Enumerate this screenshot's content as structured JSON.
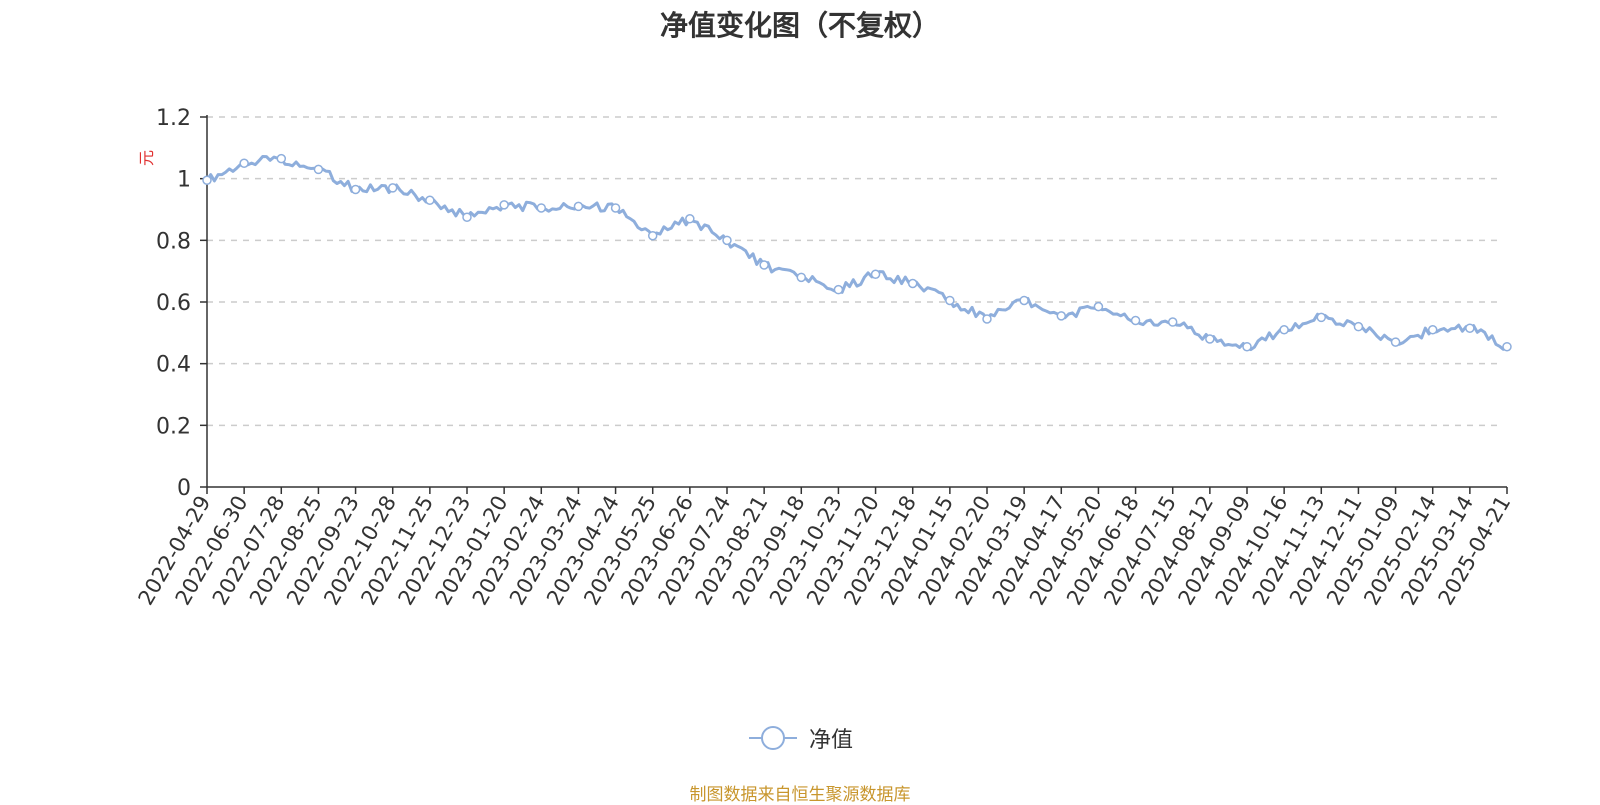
{
  "colors": {
    "line": "#8eaedc",
    "grid": "#cccccc",
    "axis": "#333333",
    "unit": "#e03030",
    "source": "#c8962d"
  },
  "footer": {
    "source": "制图数据来自恒生聚源数据库"
  },
  "chart_data": {
    "type": "line",
    "title": "净值变化图（不复权）",
    "ylabel": "元",
    "xlabel": "",
    "ylim": [
      0,
      1.2
    ],
    "yticks": [
      "0",
      "0.2",
      "0.4",
      "0.6",
      "0.8",
      "1",
      "1.2"
    ],
    "grid": true,
    "legend_position": "bottom-center",
    "categories": [
      "2022-04-29",
      "2022-06-30",
      "2022-07-28",
      "2022-08-25",
      "2022-09-23",
      "2022-10-28",
      "2022-11-25",
      "2022-12-23",
      "2023-01-20",
      "2023-02-24",
      "2023-03-24",
      "2023-04-24",
      "2023-05-25",
      "2023-06-26",
      "2023-07-24",
      "2023-08-21",
      "2023-09-18",
      "2023-10-23",
      "2023-11-20",
      "2023-12-18",
      "2024-01-15",
      "2024-02-20",
      "2024-03-19",
      "2024-04-17",
      "2024-05-20",
      "2024-06-18",
      "2024-07-15",
      "2024-08-12",
      "2024-09-09",
      "2024-10-16",
      "2024-11-13",
      "2024-12-11",
      "2025-01-09",
      "2025-02-14",
      "2025-03-14",
      "2025-04-21"
    ],
    "series": [
      {
        "name": "净值",
        "values": [
          0.995,
          1.05,
          1.065,
          1.03,
          0.965,
          0.97,
          0.93,
          0.875,
          0.915,
          0.905,
          0.91,
          0.905,
          0.815,
          0.87,
          0.8,
          0.72,
          0.68,
          0.64,
          0.69,
          0.66,
          0.605,
          0.545,
          0.605,
          0.555,
          0.585,
          0.54,
          0.535,
          0.48,
          0.455,
          0.51,
          0.55,
          0.52,
          0.47,
          0.51,
          0.515,
          0.455
        ]
      }
    ]
  }
}
